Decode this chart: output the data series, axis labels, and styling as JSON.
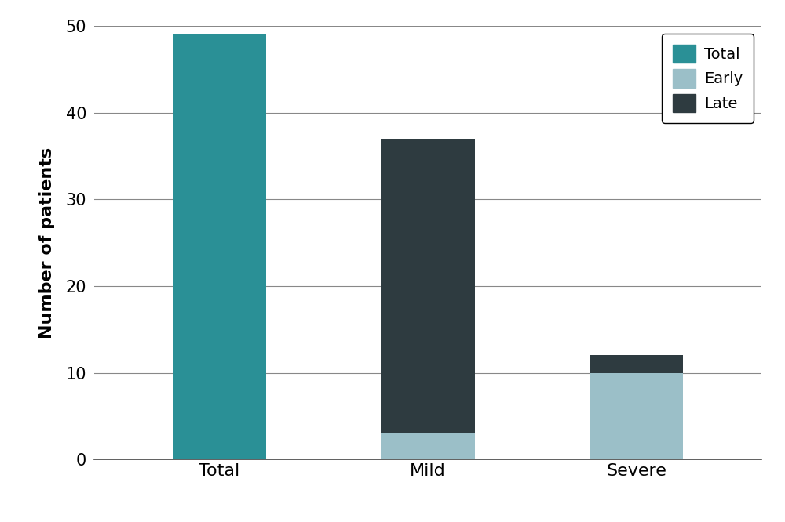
{
  "categories": [
    "Total",
    "Mild",
    "Severe"
  ],
  "total_values": [
    49,
    0,
    0
  ],
  "early_values": [
    0,
    3,
    10
  ],
  "late_values": [
    0,
    34,
    2
  ],
  "color_total": "#2a9096",
  "color_early": "#9bbfc8",
  "color_late": "#2e3b40",
  "ylabel": "Number of patients",
  "ylim": [
    0,
    50
  ],
  "yticks": [
    0,
    10,
    20,
    30,
    40,
    50
  ],
  "legend_labels": [
    "Total",
    "Early",
    "Late"
  ],
  "background_color": "#ffffff",
  "bar_width": 0.45,
  "grid_color": "#888888",
  "tick_fontsize": 15,
  "ylabel_fontsize": 16,
  "legend_fontsize": 14,
  "xlabel_fontsize": 16
}
